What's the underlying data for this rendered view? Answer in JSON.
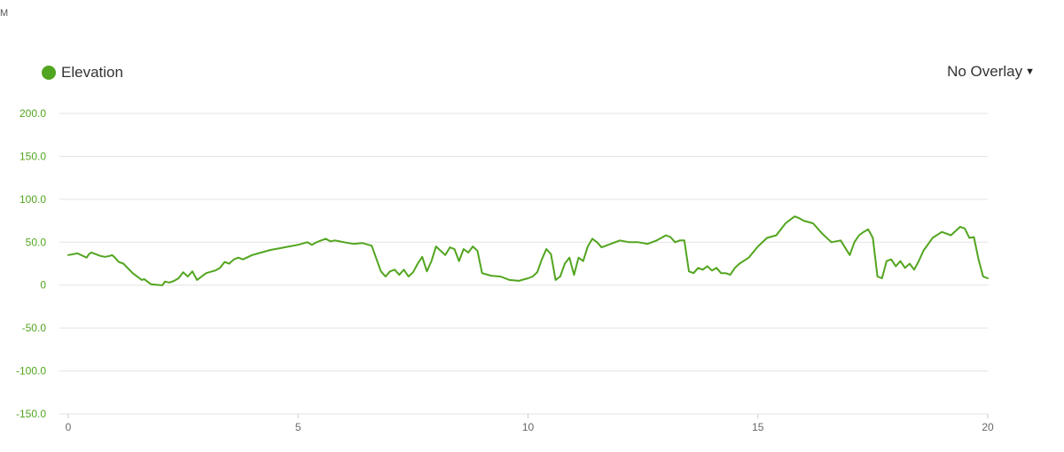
{
  "corner_text": "M",
  "legend": {
    "label": "Elevation",
    "color": "#52a51f"
  },
  "overlay": {
    "selected": "No Overlay"
  },
  "chart_data": {
    "type": "line",
    "series": [
      {
        "name": "Elevation",
        "color": "#52a51f",
        "x": [
          0,
          0.2,
          0.4,
          0.45,
          0.5,
          0.6,
          0.7,
          0.8,
          0.9,
          0.95,
          1.0,
          1.1,
          1.2,
          1.4,
          1.6,
          1.65,
          1.8,
          2.0,
          2.05,
          2.1,
          2.2,
          2.3,
          2.4,
          2.5,
          2.6,
          2.7,
          2.8,
          3.0,
          3.2,
          3.3,
          3.4,
          3.5,
          3.6,
          3.7,
          3.8,
          4.0,
          4.2,
          4.4,
          4.6,
          4.8,
          5.0,
          5.2,
          5.3,
          5.4,
          5.5,
          5.6,
          5.7,
          5.8,
          6.0,
          6.2,
          6.4,
          6.6,
          6.8,
          6.9,
          7.0,
          7.1,
          7.2,
          7.3,
          7.4,
          7.5,
          7.6,
          7.7,
          7.8,
          7.9,
          8.0,
          8.1,
          8.2,
          8.3,
          8.4,
          8.5,
          8.6,
          8.7,
          8.8,
          8.9,
          9.0,
          9.2,
          9.4,
          9.6,
          9.8,
          10.0,
          10.1,
          10.2,
          10.3,
          10.4,
          10.5,
          10.6,
          10.7,
          10.8,
          10.9,
          11.0,
          11.1,
          11.2,
          11.3,
          11.4,
          11.5,
          11.6,
          11.8,
          12.0,
          12.2,
          12.4,
          12.6,
          12.8,
          13.0,
          13.1,
          13.2,
          13.3,
          13.4,
          13.5,
          13.6,
          13.7,
          13.8,
          13.9,
          14.0,
          14.1,
          14.2,
          14.3,
          14.4,
          14.5,
          14.6,
          14.8,
          15.0,
          15.2,
          15.4,
          15.5,
          15.6,
          15.8,
          15.9,
          16.0,
          16.2,
          16.4,
          16.6,
          16.8,
          17.0,
          17.1,
          17.2,
          17.3,
          17.4,
          17.5,
          17.6,
          17.7,
          17.8,
          17.9,
          18.0,
          18.1,
          18.2,
          18.3,
          18.4,
          18.5,
          18.6,
          18.8,
          19.0,
          19.2,
          19.4,
          19.5,
          19.6,
          19.7,
          19.8,
          19.9,
          20.0
        ],
        "y": [
          35,
          37,
          32,
          36,
          38,
          36,
          34,
          33,
          34,
          35,
          33,
          27,
          25,
          14,
          6,
          7,
          1,
          0,
          0,
          4,
          3,
          5,
          8,
          15,
          10,
          16,
          6,
          14,
          17,
          20,
          27,
          25,
          30,
          32,
          30,
          35,
          38,
          41,
          43,
          45,
          47,
          50,
          47,
          50,
          52,
          54,
          51,
          52,
          50,
          48,
          49,
          46,
          16,
          10,
          16,
          18,
          12,
          18,
          10,
          15,
          25,
          33,
          16,
          28,
          45,
          40,
          35,
          44,
          42,
          28,
          42,
          38,
          45,
          40,
          14,
          11,
          10,
          6,
          5,
          8,
          10,
          15,
          30,
          42,
          36,
          6,
          10,
          25,
          32,
          12,
          32,
          28,
          45,
          54,
          50,
          44,
          48,
          52,
          50,
          50,
          48,
          52,
          58,
          56,
          50,
          52,
          52,
          16,
          14,
          20,
          18,
          22,
          17,
          20,
          14,
          14,
          12,
          20,
          25,
          32,
          45,
          55,
          58,
          65,
          72,
          80,
          78,
          75,
          72,
          60,
          50,
          52,
          35,
          50,
          58,
          62,
          65,
          55,
          10,
          8,
          28,
          30,
          22,
          28,
          20,
          25,
          18,
          28,
          40,
          55,
          62,
          58,
          68,
          66,
          55,
          56,
          30,
          10,
          8
        ]
      }
    ],
    "ylim": [
      -150,
      200
    ],
    "yticks": [
      200,
      150,
      100,
      50,
      0,
      -50,
      -100,
      -150
    ],
    "ytick_labels": [
      "200.0",
      "150.0",
      "100.0",
      "50.0",
      "0",
      "-50.0",
      "-100.0",
      "-150.0"
    ],
    "xlim": [
      0,
      20
    ],
    "xticks": [
      0,
      5,
      10,
      15,
      20
    ],
    "xtick_labels": [
      "0",
      "5",
      "10",
      "15",
      "20"
    ],
    "grid": true
  }
}
